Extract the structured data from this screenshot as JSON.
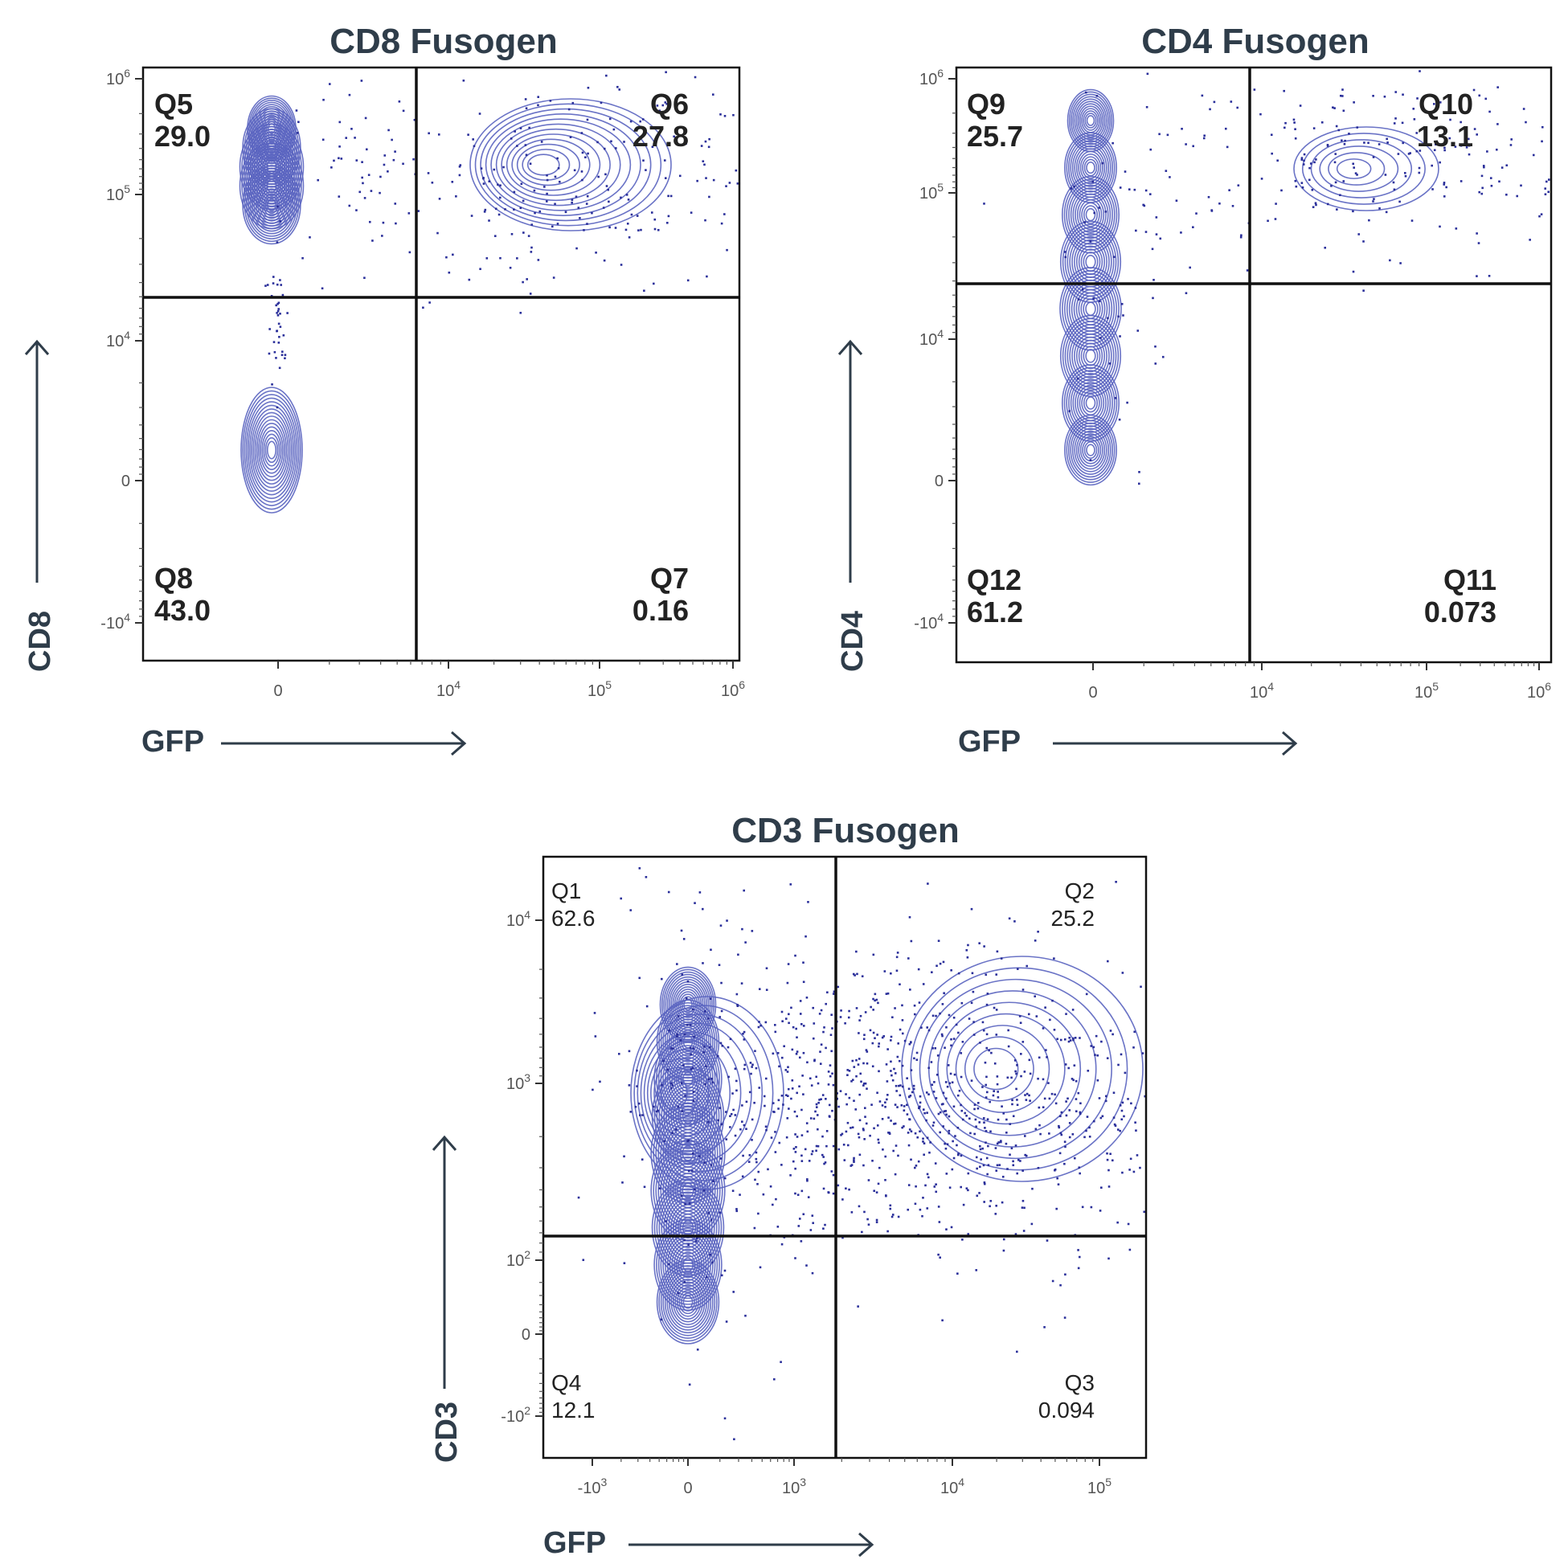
{
  "chart_data": [
    {
      "type": "scatter",
      "title": "CD8 Fusogen",
      "xlabel": "GFP",
      "ylabel": "CD8",
      "x_ticks": [
        {
          "base": "0",
          "exp": ""
        },
        {
          "base": "10",
          "exp": "4"
        },
        {
          "base": "10",
          "exp": "5"
        },
        {
          "base": "10",
          "exp": "6"
        }
      ],
      "y_ticks": [
        {
          "base": "10",
          "exp": "6"
        },
        {
          "base": "10",
          "exp": "5"
        },
        {
          "base": "10",
          "exp": "4"
        },
        {
          "base": "0",
          "exp": ""
        },
        {
          "base": "-10",
          "exp": "4"
        }
      ],
      "quadrants": [
        {
          "name": "Q5",
          "value": "29.0",
          "position": "top-left"
        },
        {
          "name": "Q6",
          "value": "27.8",
          "position": "top-right"
        },
        {
          "name": "Q8",
          "value": "43.0",
          "position": "bottom-left"
        },
        {
          "name": "Q7",
          "value": "0.16",
          "position": "bottom-right"
        }
      ],
      "populations": [
        {
          "name": "GFP- CD8+",
          "x": 0,
          "y": 100000
        },
        {
          "name": "GFP- CD8-",
          "x": 0,
          "y": 0
        },
        {
          "name": "GFP+ CD8+",
          "x": 60000,
          "y": 150000
        }
      ]
    },
    {
      "type": "scatter",
      "title": "CD4 Fusogen",
      "xlabel": "GFP",
      "ylabel": "CD4",
      "x_ticks": [
        {
          "base": "0",
          "exp": ""
        },
        {
          "base": "10",
          "exp": "4"
        },
        {
          "base": "10",
          "exp": "5"
        },
        {
          "base": "10",
          "exp": "6"
        }
      ],
      "y_ticks": [
        {
          "base": "10",
          "exp": "6"
        },
        {
          "base": "10",
          "exp": "5"
        },
        {
          "base": "10",
          "exp": "4"
        },
        {
          "base": "0",
          "exp": ""
        },
        {
          "base": "-10",
          "exp": "4"
        }
      ],
      "quadrants": [
        {
          "name": "Q9",
          "value": "25.7",
          "position": "top-left"
        },
        {
          "name": "Q10",
          "value": "13.1",
          "position": "top-right"
        },
        {
          "name": "Q12",
          "value": "61.2",
          "position": "bottom-left"
        },
        {
          "name": "Q11",
          "value": "0.073",
          "position": "bottom-right"
        }
      ],
      "populations": [
        {
          "name": "GFP- CD4+",
          "x": 0,
          "y": 150000
        },
        {
          "name": "GFP- CD4-",
          "x": 0,
          "y": 0
        },
        {
          "name": "GFP+ CD4+",
          "x": 60000,
          "y": 150000
        }
      ]
    },
    {
      "type": "scatter",
      "title": "CD3 Fusogen",
      "xlabel": "GFP",
      "ylabel": "CD3",
      "x_ticks": [
        {
          "base": "-10",
          "exp": "3"
        },
        {
          "base": "0",
          "exp": ""
        },
        {
          "base": "10",
          "exp": "3"
        },
        {
          "base": "10",
          "exp": "4"
        },
        {
          "base": "10",
          "exp": "5"
        }
      ],
      "y_ticks": [
        {
          "base": "10",
          "exp": "4"
        },
        {
          "base": "10",
          "exp": "3"
        },
        {
          "base": "10",
          "exp": "2"
        },
        {
          "base": "0",
          "exp": ""
        },
        {
          "base": "-10",
          "exp": "2"
        }
      ],
      "quadrants": [
        {
          "name": "Q1",
          "value": "62.6",
          "position": "top-left"
        },
        {
          "name": "Q2",
          "value": "25.2",
          "position": "top-right"
        },
        {
          "name": "Q4",
          "value": "12.1",
          "position": "bottom-left"
        },
        {
          "name": "Q3",
          "value": "0.094",
          "position": "bottom-right"
        }
      ],
      "populations": [
        {
          "name": "GFP- CD3+",
          "x": 0,
          "y": 1000
        },
        {
          "name": "GFP- CD3-",
          "x": 0,
          "y": 0
        },
        {
          "name": "GFP+ CD3+",
          "x": 30000,
          "y": 1300
        }
      ]
    }
  ],
  "colors": {
    "contour": "#5a64c0",
    "dots": "#2a2f9a",
    "frame": "#111111",
    "text": "#2f3d4a"
  }
}
